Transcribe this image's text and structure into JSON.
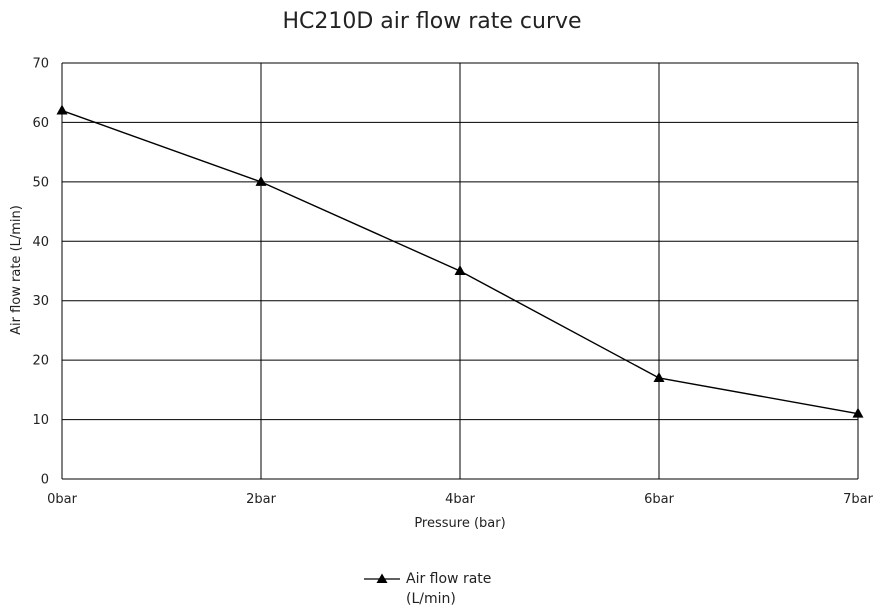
{
  "chart_data": {
    "type": "line",
    "title": "HC210D air flow rate curve",
    "xlabel": "Pressure (bar)",
    "ylabel": "Air flow rate (L/min)",
    "categories": [
      "0bar",
      "2bar",
      "4bar",
      "6bar",
      "7bar"
    ],
    "ylim": [
      0,
      70
    ],
    "yticks": [
      0,
      10,
      20,
      30,
      40,
      50,
      60,
      70
    ],
    "grid": true,
    "legend_position": "bottom-center",
    "series": [
      {
        "name": "Air flow rate (L/min)",
        "legend_lines": [
          "Air flow rate",
          "(L/min)"
        ],
        "values": [
          62,
          50,
          35,
          17,
          11
        ],
        "marker": "triangle",
        "color": "#000000"
      }
    ]
  }
}
